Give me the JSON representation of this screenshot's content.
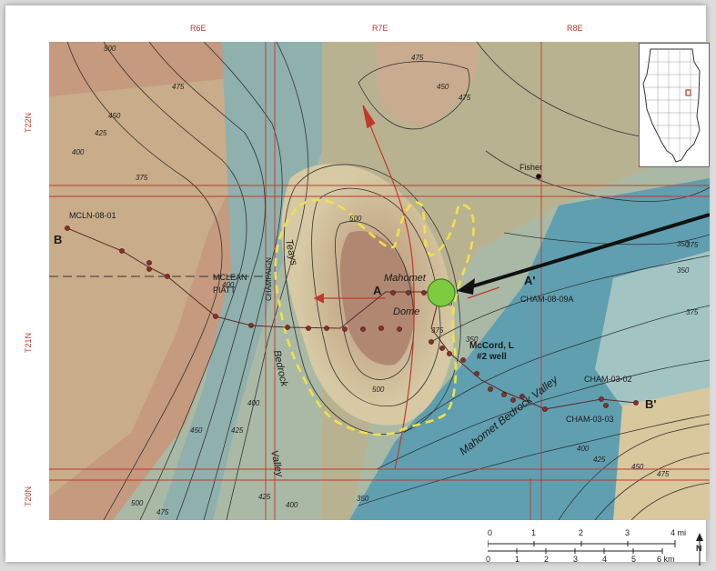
{
  "ranges": [
    "R6E",
    "R7E",
    "R8E"
  ],
  "townships": [
    "T22N",
    "T21N",
    "T20N"
  ],
  "contour_labels": [
    "500",
    "475",
    "450",
    "425",
    "400",
    "375",
    "350",
    "475",
    "450",
    "500",
    "375",
    "350",
    "425",
    "400",
    "375",
    "350",
    "400",
    "425",
    "450",
    "475",
    "500",
    "475",
    "450",
    "425",
    "400",
    "375",
    "350",
    "400",
    "425",
    "450",
    "475",
    "500"
  ],
  "place_labels": {
    "fisher": "Fisher",
    "mahomet": "Mahomet",
    "dome": "Dome",
    "mclean": "MCLEAN",
    "piatt": "PIATT",
    "champaign": "CHAMPAIGN"
  },
  "valley_labels": {
    "teays1": "Teays",
    "teays2": "Bedrock",
    "teays3": "Valley",
    "mahomet_bv": "Mahomet Bedrock Valley"
  },
  "well_labels": {
    "mcln": "MCLN-08-01",
    "cham0809a": "CHAM-08-09A",
    "cham0302": "CHAM-03-02",
    "cham0303": "CHAM-03-03",
    "mccord_line1": "McCord, L",
    "mccord_line2": "#2 well"
  },
  "section_labels": {
    "a": "A",
    "a_prime": "A'",
    "b": "B",
    "b_prime": "B'"
  },
  "colors": {
    "well_marker": "#7fcb3f",
    "outline": "#f1e14a",
    "grid_line": "#c0392b"
  },
  "scale": {
    "mi_ticks": [
      "0",
      "1",
      "2",
      "3",
      "4 mi"
    ],
    "km_ticks": [
      "0",
      "1",
      "2",
      "3",
      "4",
      "5",
      "6 km"
    ],
    "north": "N"
  }
}
